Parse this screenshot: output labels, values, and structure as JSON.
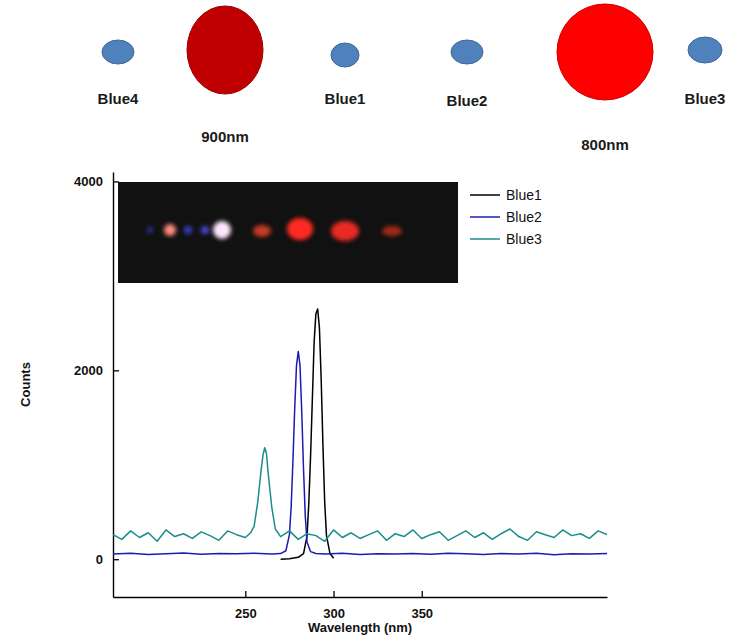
{
  "diagram": {
    "spots": [
      {
        "label": "Blue4",
        "color": "#4f81bd"
      },
      {
        "label": "900nm",
        "color": "#c00000"
      },
      {
        "label": "Blue1",
        "color": "#4f81bd"
      },
      {
        "label": "Blue2",
        "color": "#4f81bd"
      },
      {
        "label": "800nm",
        "color": "#ff0000"
      },
      {
        "label": "Blue3",
        "color": "#4f81bd"
      }
    ]
  },
  "chart_data": {
    "type": "line",
    "x_label": "Wavelength (nm)",
    "y_label": "Counts",
    "xlim": [
      175,
      455
    ],
    "xticks": [
      250,
      300,
      350
    ],
    "ylim": [
      -400,
      4100
    ],
    "yticks": [
      0,
      2000,
      4000
    ],
    "legend": "upper right",
    "series": [
      {
        "name": "Blue1",
        "color": "#000000",
        "x": [
          270,
          275,
          280,
          283,
          285,
          286,
          287,
          288,
          289,
          290,
          291,
          292,
          293,
          294,
          295,
          296,
          298,
          300
        ],
        "values": [
          0,
          5,
          20,
          60,
          250,
          600,
          1100,
          1700,
          2300,
          2600,
          2650,
          2450,
          1900,
          1200,
          600,
          250,
          60,
          10
        ]
      },
      {
        "name": "Blue2",
        "color": "#1c1cb4",
        "x": [
          175,
          185,
          195,
          205,
          215,
          225,
          235,
          245,
          255,
          265,
          270,
          273,
          275,
          276,
          277,
          278,
          279,
          280,
          281,
          282,
          283,
          284,
          285,
          287,
          290,
          295,
          305,
          315,
          325,
          335,
          345,
          355,
          365,
          375,
          385,
          395,
          405,
          415,
          425,
          435,
          445,
          455
        ],
        "values": [
          55,
          62,
          50,
          58,
          65,
          52,
          60,
          57,
          63,
          55,
          60,
          90,
          260,
          560,
          1050,
          1600,
          2050,
          2200,
          2050,
          1550,
          950,
          450,
          180,
          80,
          60,
          55,
          62,
          50,
          58,
          55,
          60,
          52,
          64,
          57,
          50,
          60,
          55,
          62,
          48,
          58,
          55,
          60
        ]
      },
      {
        "name": "Blue3",
        "color": "#1a8c8c",
        "x": [
          175,
          180,
          185,
          190,
          195,
          200,
          205,
          210,
          215,
          220,
          225,
          230,
          235,
          240,
          245,
          250,
          253,
          255,
          257,
          259,
          260,
          261,
          262,
          263,
          265,
          267,
          270,
          275,
          280,
          285,
          290,
          295,
          300,
          305,
          310,
          315,
          320,
          325,
          330,
          335,
          340,
          345,
          350,
          355,
          360,
          365,
          370,
          375,
          380,
          385,
          390,
          395,
          400,
          405,
          410,
          415,
          420,
          425,
          430,
          435,
          440,
          445,
          450,
          455
        ],
        "values": [
          260,
          210,
          300,
          230,
          280,
          190,
          310,
          240,
          270,
          220,
          290,
          250,
          200,
          300,
          260,
          230,
          280,
          350,
          600,
          950,
          1100,
          1180,
          1120,
          900,
          550,
          320,
          240,
          300,
          210,
          270,
          250,
          190,
          310,
          230,
          280,
          220,
          260,
          300,
          200,
          270,
          240,
          310,
          220,
          260,
          290,
          200,
          250,
          300,
          230,
          280,
          210,
          270,
          320,
          240,
          200,
          290,
          260,
          230,
          310,
          250,
          270,
          220,
          300,
          260
        ]
      }
    ]
  }
}
